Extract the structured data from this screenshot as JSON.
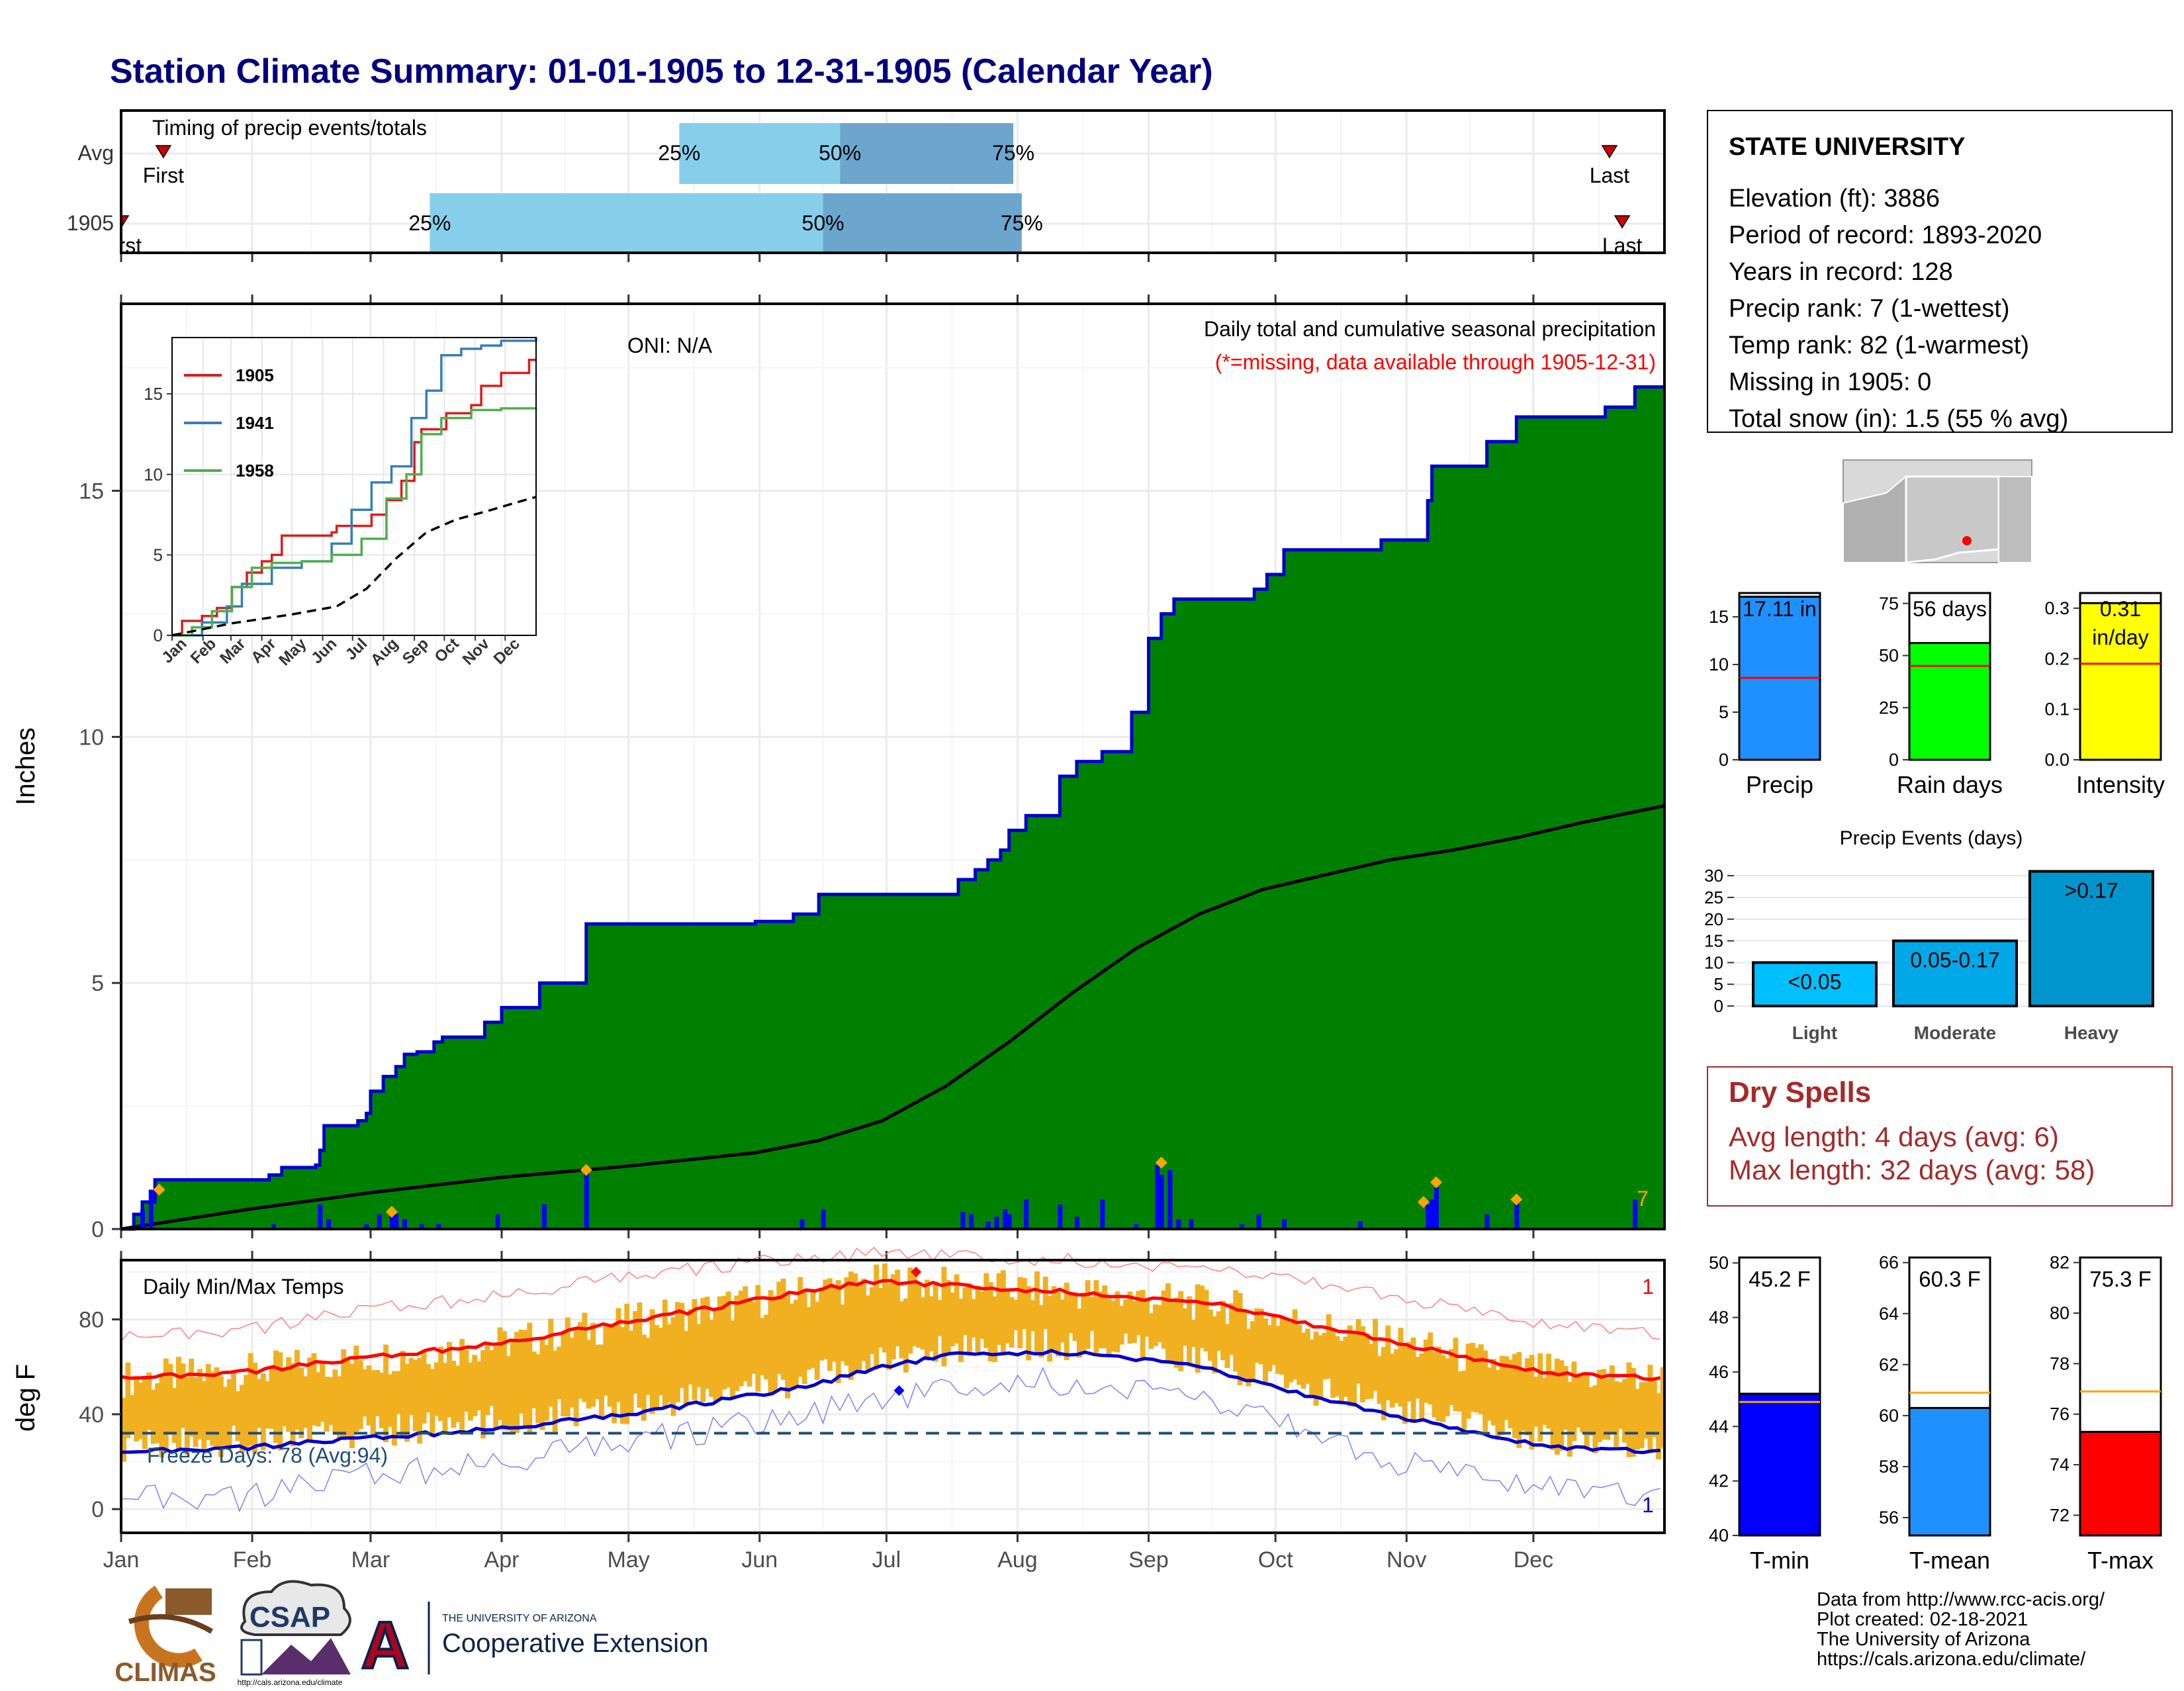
{
  "title": "Station Climate Summary: 01-01-1905 to 12-31-1905 (Calendar Year)",
  "months": [
    "Jan",
    "Feb",
    "Mar",
    "Apr",
    "May",
    "Jun",
    "Jul",
    "Aug",
    "Sep",
    "Oct",
    "Nov",
    "Dec"
  ],
  "colors": {
    "title": "#000080",
    "precip_fill": "#008000",
    "precip_line": "#0000CC",
    "avg_fill": "#E0E0E0",
    "daily_bar": "#0000FF",
    "marker": "#FFA500",
    "light_blue": "#87CEEB",
    "mid_blue": "#6CA6CD",
    "temp_band": "#F0B020",
    "red": "#FF0000",
    "dry_spell_text": "#A52A2A"
  },
  "timing": {
    "title": "Timing of precip events/totals",
    "rows": [
      {
        "label": "Avg",
        "first_label": "First",
        "last_label": "Last",
        "first_day": 10,
        "last_day": 352,
        "p25_day": 132,
        "p50_day": 170,
        "p75_day": 211,
        "p25_label": "25%",
        "p50_label": "50%",
        "p75_label": "75%"
      },
      {
        "label": "1905",
        "first_label": "First",
        "last_label": "Last",
        "first_day": 0,
        "last_day": 355,
        "p25_day": 73,
        "p50_day": 166,
        "p75_day": 213,
        "p25_label": "25%",
        "p50_label": "50%",
        "p75_label": "75%"
      }
    ]
  },
  "precip": {
    "ylabel": "Inches",
    "ylim": [
      0,
      18.8
    ],
    "yticks": [
      0,
      5,
      10,
      15
    ],
    "oni": "ONI: N/A",
    "caption1": "Daily total and cumulative seasonal precipitation",
    "caption2": "(*=missing, data available through 1905-12-31)",
    "corner_label": "7",
    "cumulative_steps": [
      [
        0,
        0
      ],
      [
        3,
        0.3
      ],
      [
        5,
        0.55
      ],
      [
        8,
        1.0
      ],
      [
        35,
        1.1
      ],
      [
        38,
        1.25
      ],
      [
        46,
        1.3
      ],
      [
        47,
        1.6
      ],
      [
        48,
        2.1
      ],
      [
        56,
        2.2
      ],
      [
        58,
        2.35
      ],
      [
        59,
        2.8
      ],
      [
        62,
        3.1
      ],
      [
        65,
        3.3
      ],
      [
        67,
        3.55
      ],
      [
        70,
        3.6
      ],
      [
        74,
        3.8
      ],
      [
        76,
        3.9
      ],
      [
        86,
        4.2
      ],
      [
        90,
        4.5
      ],
      [
        99,
        5.0
      ],
      [
        110,
        6.2
      ],
      [
        150,
        6.25
      ],
      [
        159,
        6.4
      ],
      [
        165,
        6.8
      ],
      [
        198,
        7.1
      ],
      [
        202,
        7.3
      ],
      [
        205,
        7.5
      ],
      [
        208,
        7.7
      ],
      [
        210,
        8.1
      ],
      [
        214,
        8.4
      ],
      [
        222,
        9.2
      ],
      [
        226,
        9.5
      ],
      [
        232,
        9.7
      ],
      [
        239,
        10.5
      ],
      [
        243,
        12.0
      ],
      [
        246,
        12.5
      ],
      [
        249,
        12.8
      ],
      [
        268,
        13.0
      ],
      [
        271,
        13.3
      ],
      [
        275,
        13.8
      ],
      [
        298,
        14.0
      ],
      [
        309,
        14.8
      ],
      [
        310,
        15.5
      ],
      [
        323,
        16.0
      ],
      [
        330,
        16.5
      ],
      [
        351,
        16.7
      ],
      [
        358,
        17.11
      ],
      [
        365,
        17.11
      ]
    ],
    "average_points": [
      [
        0,
        0
      ],
      [
        30,
        0.4
      ],
      [
        60,
        0.75
      ],
      [
        90,
        1.05
      ],
      [
        120,
        1.28
      ],
      [
        150,
        1.55
      ],
      [
        165,
        1.8
      ],
      [
        180,
        2.2
      ],
      [
        195,
        2.9
      ],
      [
        210,
        3.8
      ],
      [
        225,
        4.8
      ],
      [
        240,
        5.7
      ],
      [
        255,
        6.4
      ],
      [
        270,
        6.9
      ],
      [
        285,
        7.2
      ],
      [
        300,
        7.5
      ],
      [
        315,
        7.7
      ],
      [
        330,
        7.95
      ],
      [
        345,
        8.25
      ],
      [
        365,
        8.6
      ]
    ],
    "daily_bars": [
      [
        5,
        0.4
      ],
      [
        7,
        0.8
      ],
      [
        36,
        0.1
      ],
      [
        47,
        0.5
      ],
      [
        49,
        0.2
      ],
      [
        58,
        0.1
      ],
      [
        61,
        0.3
      ],
      [
        64,
        0.4
      ],
      [
        65,
        0.3
      ],
      [
        67,
        0.2
      ],
      [
        71,
        0.1
      ],
      [
        75,
        0.1
      ],
      [
        89,
        0.3
      ],
      [
        100,
        0.5
      ],
      [
        110,
        1.2
      ],
      [
        161,
        0.2
      ],
      [
        166,
        0.4
      ],
      [
        199,
        0.35
      ],
      [
        201,
        0.3
      ],
      [
        205,
        0.15
      ],
      [
        207,
        0.25
      ],
      [
        209,
        0.4
      ],
      [
        210,
        0.3
      ],
      [
        214,
        0.6
      ],
      [
        222,
        0.5
      ],
      [
        226,
        0.25
      ],
      [
        232,
        0.6
      ],
      [
        240,
        0.1
      ],
      [
        245,
        1.3
      ],
      [
        246,
        1.1
      ],
      [
        248,
        1.2
      ],
      [
        250,
        0.2
      ],
      [
        253,
        0.2
      ],
      [
        265,
        0.1
      ],
      [
        269,
        0.3
      ],
      [
        275,
        0.2
      ],
      [
        293,
        0.15
      ],
      [
        309,
        0.5
      ],
      [
        310,
        0.6
      ],
      [
        311,
        0.85
      ],
      [
        323,
        0.3
      ],
      [
        330,
        0.55
      ],
      [
        358,
        0.6
      ]
    ],
    "markers": [
      [
        9,
        0.8
      ],
      [
        64,
        0.35
      ],
      [
        110,
        1.2
      ],
      [
        246,
        1.35
      ],
      [
        308,
        0.55
      ],
      [
        311,
        0.95
      ],
      [
        330,
        0.6
      ]
    ]
  },
  "inset": {
    "yticks": [
      0,
      5,
      10,
      15
    ],
    "ylim": [
      0,
      18.5
    ],
    "series": [
      {
        "name": "1905",
        "color": "#DD1C1C",
        "points": [
          [
            0,
            0
          ],
          [
            10,
            0.9
          ],
          [
            30,
            1.2
          ],
          [
            45,
            1.7
          ],
          [
            60,
            3.0
          ],
          [
            75,
            3.9
          ],
          [
            90,
            4.6
          ],
          [
            100,
            5.0
          ],
          [
            110,
            6.2
          ],
          [
            160,
            6.4
          ],
          [
            165,
            6.8
          ],
          [
            200,
            7.5
          ],
          [
            215,
            8.4
          ],
          [
            230,
            9.6
          ],
          [
            243,
            12.0
          ],
          [
            250,
            12.8
          ],
          [
            275,
            13.8
          ],
          [
            300,
            14.3
          ],
          [
            310,
            15.5
          ],
          [
            330,
            16.3
          ],
          [
            358,
            17.11
          ],
          [
            365,
            17.11
          ]
        ]
      },
      {
        "name": "1941",
        "color": "#377EB8",
        "points": [
          [
            0,
            0
          ],
          [
            30,
            0.8
          ],
          [
            55,
            1.8
          ],
          [
            70,
            3.2
          ],
          [
            100,
            4.2
          ],
          [
            130,
            4.6
          ],
          [
            160,
            5.7
          ],
          [
            180,
            7.8
          ],
          [
            200,
            9.5
          ],
          [
            220,
            10.5
          ],
          [
            240,
            13.5
          ],
          [
            255,
            15.2
          ],
          [
            270,
            17.4
          ],
          [
            290,
            17.8
          ],
          [
            310,
            18.0
          ],
          [
            330,
            18.3
          ],
          [
            365,
            18.5
          ]
        ]
      },
      {
        "name": "1958",
        "color": "#4DAF4A",
        "points": [
          [
            0,
            0
          ],
          [
            20,
            0.5
          ],
          [
            40,
            1.5
          ],
          [
            60,
            3.0
          ],
          [
            80,
            4.2
          ],
          [
            100,
            4.5
          ],
          [
            130,
            4.6
          ],
          [
            160,
            5.0
          ],
          [
            190,
            6.0
          ],
          [
            215,
            8.5
          ],
          [
            235,
            10.0
          ],
          [
            250,
            12.5
          ],
          [
            270,
            13.5
          ],
          [
            300,
            14.0
          ],
          [
            330,
            14.1
          ],
          [
            365,
            14.1
          ]
        ]
      }
    ],
    "average_points": [
      [
        0,
        0
      ],
      [
        60,
        0.75
      ],
      [
        120,
        1.3
      ],
      [
        165,
        1.8
      ],
      [
        195,
        2.9
      ],
      [
        225,
        4.8
      ],
      [
        255,
        6.4
      ],
      [
        285,
        7.2
      ],
      [
        315,
        7.7
      ],
      [
        345,
        8.25
      ],
      [
        365,
        8.6
      ]
    ]
  },
  "temps": {
    "ylabel": "deg F",
    "ylim": [
      -10,
      105
    ],
    "yticks": [
      0,
      40,
      80
    ],
    "title": "Daily Min/Max Temps",
    "freeze_label": "Freeze Days: 78 (Avg:94)",
    "freeze_line": 32,
    "top_right_label": "1",
    "bottom_right_label": "1",
    "avg_max": [
      [
        0,
        55
      ],
      [
        30,
        58
      ],
      [
        60,
        64
      ],
      [
        90,
        70
      ],
      [
        120,
        79
      ],
      [
        150,
        88
      ],
      [
        165,
        93
      ],
      [
        180,
        96
      ],
      [
        200,
        94
      ],
      [
        230,
        91
      ],
      [
        260,
        86
      ],
      [
        280,
        78
      ],
      [
        300,
        71
      ],
      [
        320,
        63
      ],
      [
        340,
        57
      ],
      [
        365,
        55
      ]
    ],
    "avg_min": [
      [
        0,
        24
      ],
      [
        30,
        26
      ],
      [
        60,
        30
      ],
      [
        90,
        34
      ],
      [
        120,
        40
      ],
      [
        150,
        48
      ],
      [
        165,
        53
      ],
      [
        180,
        60
      ],
      [
        200,
        66
      ],
      [
        230,
        66
      ],
      [
        255,
        60
      ],
      [
        275,
        50
      ],
      [
        300,
        40
      ],
      [
        320,
        32
      ],
      [
        340,
        26
      ],
      [
        365,
        24
      ]
    ],
    "record_max": [
      [
        0,
        72
      ],
      [
        30,
        76
      ],
      [
        60,
        84
      ],
      [
        90,
        90
      ],
      [
        120,
        98
      ],
      [
        150,
        104
      ],
      [
        180,
        108
      ],
      [
        210,
        106
      ],
      [
        240,
        104
      ],
      [
        270,
        98
      ],
      [
        300,
        90
      ],
      [
        330,
        80
      ],
      [
        365,
        73
      ]
    ],
    "record_min": [
      [
        0,
        5
      ],
      [
        30,
        5
      ],
      [
        60,
        14
      ],
      [
        90,
        20
      ],
      [
        120,
        28
      ],
      [
        150,
        36
      ],
      [
        180,
        46
      ],
      [
        210,
        55
      ],
      [
        240,
        52
      ],
      [
        270,
        38
      ],
      [
        300,
        20
      ],
      [
        330,
        12
      ],
      [
        365,
        3
      ]
    ],
    "max_marker": [
      188,
      100
    ],
    "min_marker": [
      184,
      50
    ]
  },
  "station": {
    "name": "STATE UNIVERSITY",
    "lines": [
      "Elevation (ft): 3886",
      "Period of record: 1893-2020",
      "Years in record: 128",
      "Precip rank: 7 (1-wettest)",
      "Temp rank: 82 (1-warmest)",
      "Missing in 1905: 0",
      "Total snow (in): 1.5 (55 % avg)"
    ]
  },
  "mini_bars": [
    {
      "id": "precip",
      "label": "Precip",
      "value": 17.11,
      "avg": 8.6,
      "ymax": 17.5,
      "yticks": [
        0,
        5,
        10,
        15
      ],
      "value_label": "17.11 in",
      "color": "#1E90FF"
    },
    {
      "id": "rain-days",
      "label": "Rain days",
      "value": 56,
      "avg": 45,
      "ymax": 80,
      "yticks": [
        0,
        25,
        50,
        75
      ],
      "value_label": "56 days",
      "color": "#00FF00"
    },
    {
      "id": "intensity",
      "label": "Intensity",
      "value": 0.31,
      "avg": 0.19,
      "ymax": 0.33,
      "yticks": [
        0.0,
        0.1,
        0.2,
        0.3
      ],
      "value_label": "0.31",
      "value_label2": "in/day",
      "color": "#FFFF00"
    }
  ],
  "events": {
    "title": "Precip Events (days)",
    "yticks": [
      0,
      5,
      10,
      15,
      20,
      25,
      30
    ],
    "ymax": 32,
    "bars": [
      {
        "category": "Light",
        "label": "<0.05",
        "value": 10,
        "color": "#00BFFF"
      },
      {
        "category": "Moderate",
        "label": "0.05-0.17",
        "value": 15,
        "color": "#00A8E8"
      },
      {
        "category": "Heavy",
        "label": ">0.17",
        "value": 31,
        "color": "#0095CC"
      }
    ]
  },
  "dry_spells": {
    "title": "Dry Spells",
    "line1": "Avg length: 4 days (avg: 6)",
    "line2": "Max length: 32 days (avg: 58)"
  },
  "temp_bars": [
    {
      "id": "t-min",
      "label": "T-min",
      "value": 45.2,
      "avg": 44.9,
      "ylim": [
        40,
        50.2
      ],
      "yticks": [
        40,
        42,
        44,
        46,
        48,
        50
      ],
      "value_label": "45.2 F",
      "color": "#0000FF"
    },
    {
      "id": "t-mean",
      "label": "T-mean",
      "value": 60.3,
      "avg": 60.9,
      "ylim": [
        55.3,
        66.2
      ],
      "yticks": [
        56,
        58,
        60,
        62,
        64,
        66
      ],
      "value_label": "60.3 F",
      "color": "#1E90FF"
    },
    {
      "id": "t-max",
      "label": "T-max",
      "value": 75.3,
      "avg": 76.9,
      "ylim": [
        71.2,
        82.2
      ],
      "yticks": [
        72,
        74,
        76,
        78,
        80,
        82
      ],
      "value_label": "75.3 F",
      "color": "#FF0000"
    }
  ],
  "credits": [
    "Data from http://www.rcc-acis.org/",
    "Plot created: 02-18-2021",
    "The University of Arizona",
    "https://cals.arizona.edu/climate/"
  ],
  "logos": {
    "climas": "CLIMAS",
    "csap": "CSAP",
    "csap_url": "http://cals.arizona.edu/climate",
    "ua_small": "THE UNIVERSITY OF ARIZONA",
    "ua_big": "Cooperative Extension",
    "ua_letter": "A"
  }
}
